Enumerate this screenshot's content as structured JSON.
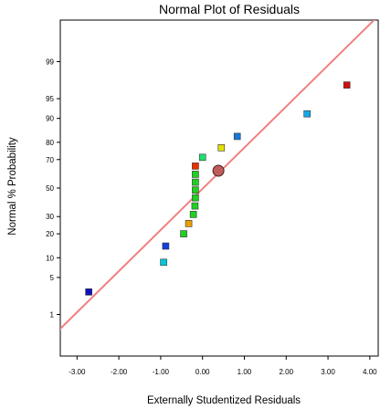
{
  "chart_data": {
    "type": "scatter",
    "title": "Normal Plot of Residuals",
    "xlabel": "Externally Studentized Residuals",
    "ylabel": "Normal % Probability",
    "xlim": [
      -3.4,
      4.2
    ],
    "ylim_probability": [
      0.1,
      99.9
    ],
    "y_scale": "normal-probability",
    "grid": false,
    "legend": "none",
    "x_ticks": [
      "-3.00",
      "-2.00",
      "-1.00",
      "0.00",
      "1.00",
      "2.00",
      "3.00",
      "4.00"
    ],
    "x_tick_values": [
      -3,
      -2,
      -1,
      0,
      1,
      2,
      3,
      4
    ],
    "y_ticks": [
      "1",
      "5",
      "10",
      "20",
      "30",
      "50",
      "70",
      "80",
      "90",
      "95",
      "99"
    ],
    "y_tick_values": [
      1,
      5,
      10,
      20,
      30,
      50,
      70,
      80,
      90,
      95,
      99
    ],
    "reference_line": {
      "color": "#f08080",
      "points": [
        {
          "x": -3.3,
          "p": 0.6
        },
        {
          "x": 4.1,
          "p": 99.9
        }
      ]
    },
    "highlight_point": {
      "x": 0.38,
      "p": 62.5,
      "color": "#c05c5c"
    },
    "points": [
      {
        "x": -2.72,
        "p": 2.8,
        "color": "#1010c0"
      },
      {
        "x": -0.93,
        "p": 8.6,
        "color": "#00c8d8"
      },
      {
        "x": -0.88,
        "p": 14.3,
        "color": "#1040e0"
      },
      {
        "x": -0.45,
        "p": 20.0,
        "color": "#20d020"
      },
      {
        "x": -0.33,
        "p": 25.7,
        "color": "#e8a000"
      },
      {
        "x": -0.22,
        "p": 31.4,
        "color": "#20d020"
      },
      {
        "x": -0.18,
        "p": 37.1,
        "color": "#20d020"
      },
      {
        "x": -0.17,
        "p": 42.9,
        "color": "#20d020"
      },
      {
        "x": -0.17,
        "p": 48.6,
        "color": "#20d020"
      },
      {
        "x": -0.17,
        "p": 54.3,
        "color": "#20d020"
      },
      {
        "x": -0.17,
        "p": 60.0,
        "color": "#20d020"
      },
      {
        "x": -0.17,
        "p": 65.7,
        "color": "#e83000"
      },
      {
        "x": 0.0,
        "p": 71.4,
        "color": "#20e070"
      },
      {
        "x": 0.45,
        "p": 77.1,
        "color": "#e0e000"
      },
      {
        "x": 0.83,
        "p": 82.9,
        "color": "#1878d8"
      },
      {
        "x": 2.5,
        "p": 91.4,
        "color": "#18a8e8"
      },
      {
        "x": 3.45,
        "p": 97.1,
        "color": "#d01010"
      }
    ]
  }
}
